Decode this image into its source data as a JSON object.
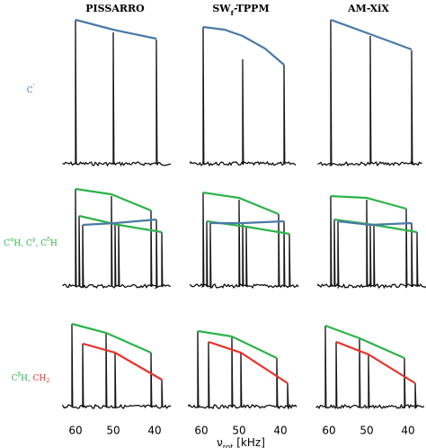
{
  "columns": [
    {
      "title": [
        {
          "text": "PISSARRO"
        }
      ],
      "ticks": [
        "60",
        "50",
        "40"
      ]
    },
    {
      "title": [
        {
          "text": "SW"
        },
        {
          "sub": "f"
        },
        {
          "text": "-TPPM"
        }
      ],
      "ticks": [
        "60",
        "50",
        "40"
      ]
    },
    {
      "title": [
        {
          "text": "AM-XiX"
        }
      ],
      "ticks": [
        "60",
        "50",
        "40"
      ]
    }
  ],
  "rows": [
    {
      "label": [
        {
          "text": "C",
          "color": "#4a7aa8"
        },
        {
          "sup": "'",
          "color": "#4a7aa8"
        }
      ]
    },
    {
      "label": [
        {
          "text": "C",
          "color": "#2db34a"
        },
        {
          "sup": "α",
          "color": "#2db34a"
        },
        {
          "text": "H, C",
          "color": "#2db34a"
        },
        {
          "sup": "γ",
          "color": "#2db34a"
        },
        {
          "text": ", C",
          "color": "#2db34a"
        },
        {
          "sup": "δ",
          "color": "#2db34a"
        },
        {
          "text": "H",
          "color": "#2db34a"
        }
      ]
    },
    {
      "label": [
        {
          "text": "C",
          "color": "#2db34a"
        },
        {
          "sup": "β",
          "color": "#2db34a"
        },
        {
          "text": "H, ",
          "color": "#2db34a"
        },
        {
          "text": "CH",
          "color": "#e8322a"
        },
        {
          "sub": "2",
          "color": "#e8322a"
        }
      ]
    }
  ],
  "x_axis": {
    "label": [
      {
        "text": "ν"
      },
      {
        "sub": "rot"
      },
      {
        "text": " [kHz]"
      }
    ]
  }
}
